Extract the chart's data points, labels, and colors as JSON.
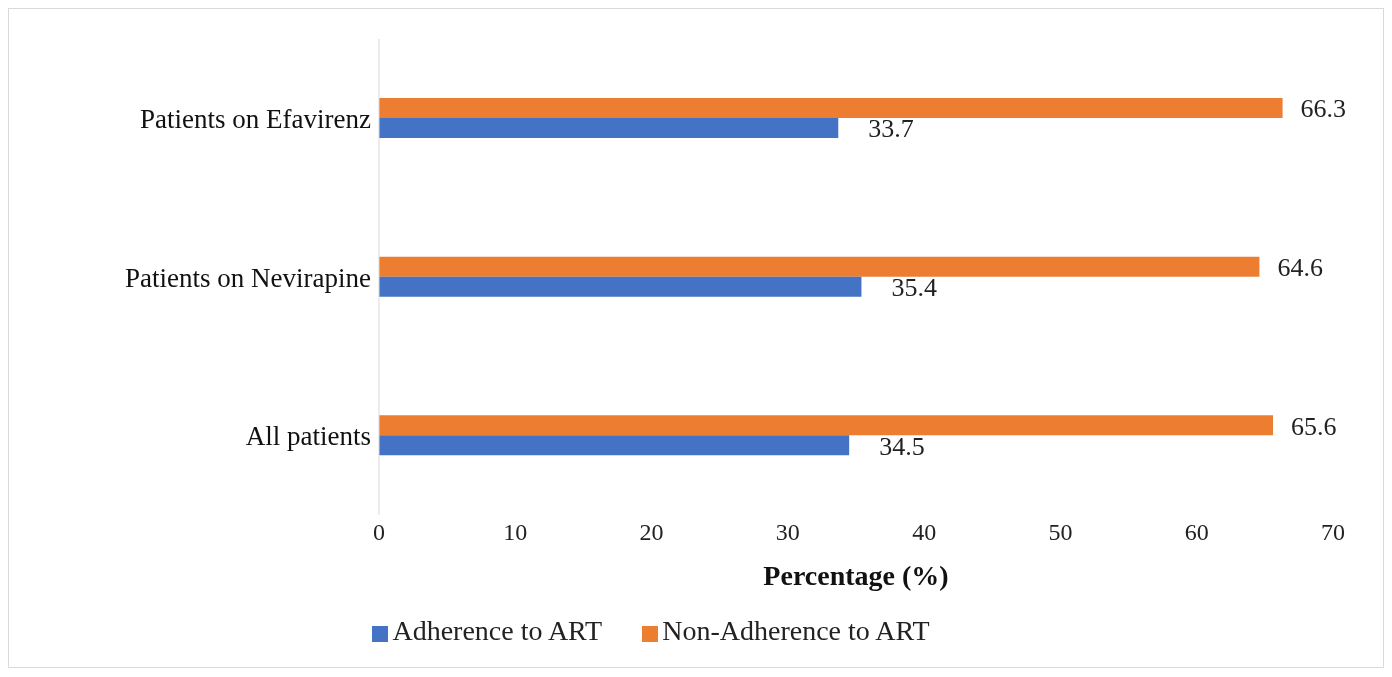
{
  "chart_data": {
    "type": "bar",
    "orientation": "horizontal",
    "xlabel": "Percentage (%)",
    "categories": [
      "Patients on Efavirenz",
      "Patients on Nevirapine",
      "All patients"
    ],
    "series": [
      {
        "name": "Non-Adherence to ART",
        "color": "#ed7d31",
        "values": [
          66.3,
          64.6,
          65.6
        ]
      },
      {
        "name": "Adherence to ART",
        "color": "#4472c4",
        "values": [
          33.7,
          35.4,
          34.5
        ]
      }
    ],
    "xlim": [
      0,
      70
    ],
    "xticks": [
      0,
      10,
      20,
      30,
      40,
      50,
      60,
      70
    ],
    "grid": false,
    "legend": "bottom",
    "data_labels": true
  }
}
